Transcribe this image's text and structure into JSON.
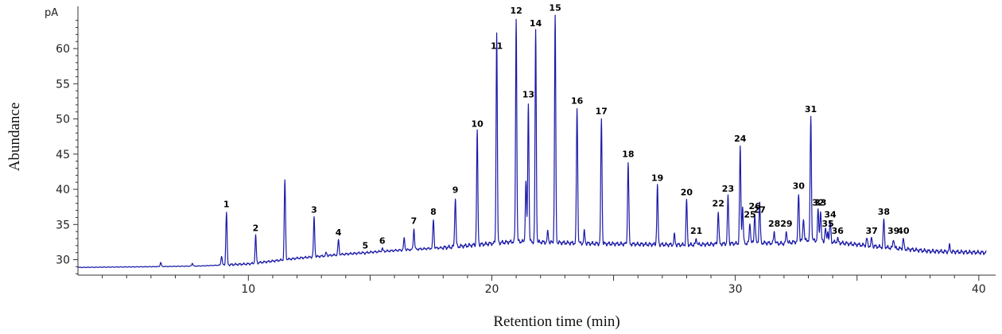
{
  "chart_data": {
    "type": "line",
    "title": "",
    "xlabel": "Retention time (min)",
    "ylabel": "Abundance",
    "y_unit": "pA",
    "xlim": [
      3,
      40.3
    ],
    "ylim": [
      27.8,
      66
    ],
    "x_ticks": [
      10,
      15,
      20,
      25,
      30,
      35,
      40
    ],
    "x_tick_labels": [
      "10",
      "",
      "20",
      "",
      "30",
      "",
      "40"
    ],
    "y_ticks": [
      30,
      35,
      40,
      45,
      50,
      55,
      60
    ],
    "line_color": "#1a1aa8",
    "baseline": [
      [
        3,
        28.9
      ],
      [
        6,
        29.0
      ],
      [
        8,
        29.1
      ],
      [
        10,
        29.4
      ],
      [
        12,
        30.2
      ],
      [
        14,
        30.8
      ],
      [
        16,
        31.3
      ],
      [
        18,
        31.7
      ],
      [
        20,
        32.3
      ],
      [
        21,
        32.6
      ],
      [
        22,
        32.5
      ],
      [
        24,
        32.3
      ],
      [
        26,
        32.2
      ],
      [
        28,
        32.1
      ],
      [
        30,
        32.3
      ],
      [
        31,
        32.4
      ],
      [
        32,
        32.3
      ],
      [
        33,
        32.8
      ],
      [
        34,
        32.5
      ],
      [
        36,
        31.8
      ],
      [
        38,
        31.2
      ],
      [
        40.3,
        31.0
      ]
    ],
    "minor_peaks": [
      {
        "x": 6.4,
        "y": 29.6
      },
      {
        "x": 7.7,
        "y": 29.5
      },
      {
        "x": 8.9,
        "y": 30.5
      },
      {
        "x": 11.5,
        "y": 41.3
      },
      {
        "x": 13.2,
        "y": 31.0
      },
      {
        "x": 16.4,
        "y": 33.0
      },
      {
        "x": 20.2,
        "y": 35.5
      },
      {
        "x": 21.4,
        "y": 41.0
      },
      {
        "x": 22.3,
        "y": 34.0
      },
      {
        "x": 23.8,
        "y": 34.0
      },
      {
        "x": 27.5,
        "y": 33.5
      },
      {
        "x": 30.3,
        "y": 37.5
      },
      {
        "x": 31.0,
        "y": 34.5
      },
      {
        "x": 32.8,
        "y": 36.0
      },
      {
        "x": 33.7,
        "y": 34.5
      },
      {
        "x": 35.4,
        "y": 33.0
      },
      {
        "x": 38.8,
        "y": 32.0
      }
    ],
    "peaks": [
      {
        "label": "1",
        "x": 9.1,
        "y": 36.8
      },
      {
        "label": "2",
        "x": 10.3,
        "y": 33.4
      },
      {
        "label": "3",
        "x": 12.7,
        "y": 36.0
      },
      {
        "label": "4",
        "x": 13.7,
        "y": 32.8
      },
      {
        "label": "5",
        "x": 14.8,
        "y": 30.9
      },
      {
        "label": "6",
        "x": 15.5,
        "y": 31.6
      },
      {
        "label": "7",
        "x": 16.8,
        "y": 34.4
      },
      {
        "label": "8",
        "x": 17.6,
        "y": 35.7
      },
      {
        "label": "9",
        "x": 18.5,
        "y": 38.8
      },
      {
        "label": "10",
        "x": 19.4,
        "y": 48.2
      },
      {
        "label": "11",
        "x": 20.2,
        "y": 59.3
      },
      {
        "label": "12",
        "x": 21.0,
        "y": 64.3
      },
      {
        "label": "13",
        "x": 21.5,
        "y": 52.4
      },
      {
        "label": "14",
        "x": 21.8,
        "y": 62.5
      },
      {
        "label": "15",
        "x": 22.6,
        "y": 64.7
      },
      {
        "label": "16",
        "x": 23.5,
        "y": 51.5
      },
      {
        "label": "17",
        "x": 24.5,
        "y": 50.0
      },
      {
        "label": "18",
        "x": 25.6,
        "y": 43.9
      },
      {
        "label": "19",
        "x": 26.8,
        "y": 40.5
      },
      {
        "label": "20",
        "x": 28.0,
        "y": 38.5
      },
      {
        "label": "21",
        "x": 28.4,
        "y": 33.0
      },
      {
        "label": "22",
        "x": 29.3,
        "y": 36.9
      },
      {
        "label": "23",
        "x": 29.7,
        "y": 39.0
      },
      {
        "label": "24",
        "x": 30.2,
        "y": 46.1
      },
      {
        "label": "25",
        "x": 30.6,
        "y": 35.3
      },
      {
        "label": "26",
        "x": 30.8,
        "y": 36.5
      },
      {
        "label": "27",
        "x": 31.0,
        "y": 36.0
      },
      {
        "label": "28",
        "x": 31.6,
        "y": 34.0
      },
      {
        "label": "29",
        "x": 32.1,
        "y": 34.0
      },
      {
        "label": "30",
        "x": 32.6,
        "y": 39.4
      },
      {
        "label": "31",
        "x": 33.1,
        "y": 50.3
      },
      {
        "label": "32",
        "x": 33.4,
        "y": 37.0
      },
      {
        "label": "33",
        "x": 33.5,
        "y": 37.0
      },
      {
        "label": "34",
        "x": 33.9,
        "y": 35.3
      },
      {
        "label": "35",
        "x": 33.8,
        "y": 34.0
      },
      {
        "label": "36",
        "x": 34.2,
        "y": 33.0
      },
      {
        "label": "37",
        "x": 35.6,
        "y": 33.0
      },
      {
        "label": "38",
        "x": 36.1,
        "y": 35.7
      },
      {
        "label": "39",
        "x": 36.5,
        "y": 33.0
      },
      {
        "label": "40",
        "x": 36.9,
        "y": 33.0
      }
    ]
  }
}
